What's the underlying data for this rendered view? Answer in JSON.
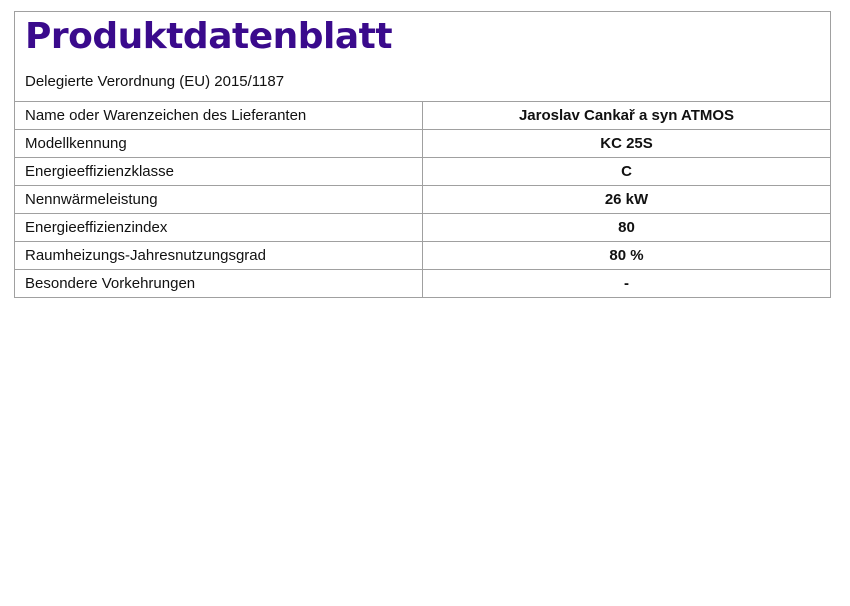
{
  "title": "Produktdatenblatt",
  "subtitle": "Delegierte Verordnung (EU) 2015/1187",
  "title_color": "#3a0a8c",
  "rows": [
    {
      "label": "Name oder Warenzeichen des Lieferanten",
      "value": "Jaroslav Cankař a syn ATMOS"
    },
    {
      "label": "Modellkennung",
      "value": "KC 25S"
    },
    {
      "label": "Energieeffizienzklasse",
      "value": "C"
    },
    {
      "label": "Nennwärmeleistung",
      "value": "26 kW"
    },
    {
      "label": "Energieeffizienzindex",
      "value": "80"
    },
    {
      "label": "Raumheizungs-Jahresnutzungsgrad",
      "value": "80 %"
    },
    {
      "label": "Besondere Vorkehrungen",
      "value": "-"
    }
  ]
}
